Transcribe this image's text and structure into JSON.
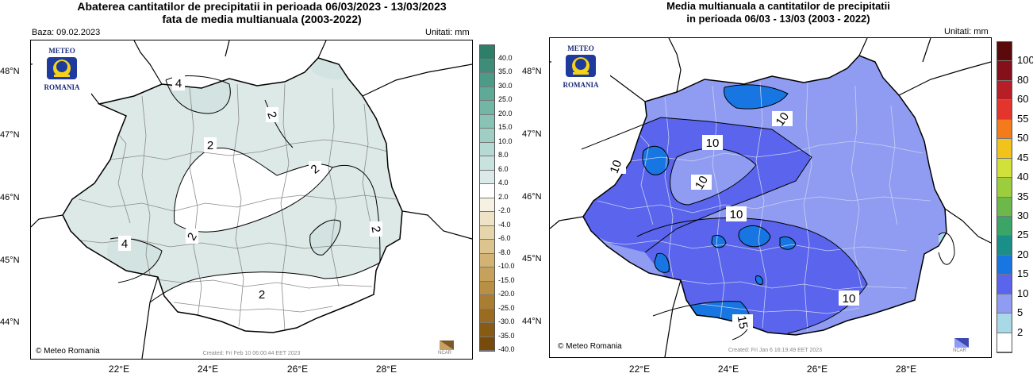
{
  "left_map": {
    "title_line1": "Abaterea cantitatilor de precipitatii in perioada 06/03/2023 - 13/03/2023",
    "title_line2": "fata de media multianuala (2003-2022)",
    "baza": "Baza: 09.02.2023",
    "units": "Unitati: mm",
    "lat_labels": [
      "48°N",
      "47°N",
      "46°N",
      "45°N",
      "44°N"
    ],
    "lon_labels": [
      "22°E",
      "24°E",
      "26°E",
      "28°E"
    ],
    "logo_top": "METEO",
    "logo_bottom": "ROMANIA",
    "credit": "Meteo Romania",
    "created": "Created: Fri Feb 10 06:00:44 EET 2023",
    "ncar": "NCAR",
    "contour_labels": [
      "4",
      "2",
      "2",
      "2",
      "4",
      "2",
      "2"
    ],
    "legend": {
      "labels": [
        "40.0",
        "35.0",
        "30.0",
        "25.0",
        "20.0",
        "15.0",
        "10.0",
        "8.0",
        "6.0",
        "4.0",
        "2.0",
        "-2.0",
        "-4.0",
        "-6.0",
        "-8.0",
        "-10.0",
        "-15.0",
        "-20.0",
        "-25.0",
        "-30.0",
        "-35.0",
        "-40.0"
      ],
      "colors": [
        "#2f7e6a",
        "#3e8d79",
        "#4c9b88",
        "#5ea997",
        "#72b6a6",
        "#88c3b5",
        "#9fcfc4",
        "#b5dad3",
        "#c8e2de",
        "#dbeae8",
        "#ffffff",
        "#f7f1e3",
        "#efe3c7",
        "#e6d4ab",
        "#ddc48f",
        "#d2b374",
        "#c6a15c",
        "#b98f45",
        "#aa7e32",
        "#996c22",
        "#885b15",
        "#774b0b"
      ]
    }
  },
  "right_map": {
    "title_line1": "Media multianuala a cantitatilor de precipitatii",
    "title_line2": "in perioada 06/03 - 13/03 (2003 - 2022)",
    "units": "Unitati: mm",
    "lat_labels": [
      "48°N",
      "47°N",
      "46°N",
      "45°N",
      "44°N"
    ],
    "lon_labels": [
      "22°E",
      "24°E",
      "26°E",
      "28°E"
    ],
    "logo_top": "METEO",
    "logo_bottom": "ROMANIA",
    "credit": "Meteo Romania",
    "created": "Created: Fri Jan 6 16:19:49 EET 2023",
    "ncar": "NCAR",
    "contour_labels": [
      "10",
      "10",
      "10",
      "10",
      "10",
      "10",
      "15"
    ],
    "legend": {
      "labels": [
        "100",
        "80",
        "60",
        "55",
        "50",
        "45",
        "40",
        "35",
        "30",
        "25",
        "20",
        "15",
        "10",
        "5",
        "2"
      ],
      "colors": [
        "#5a0a0a",
        "#86101a",
        "#b81e26",
        "#e3352c",
        "#f47b1c",
        "#f2c31a",
        "#d2e03a",
        "#9ccd3c",
        "#6cb84a",
        "#3aa566",
        "#1a8f8a",
        "#1776e2",
        "#5a64ec",
        "#8f9cf2",
        "#a9d9e6",
        "#ffffff"
      ]
    }
  }
}
